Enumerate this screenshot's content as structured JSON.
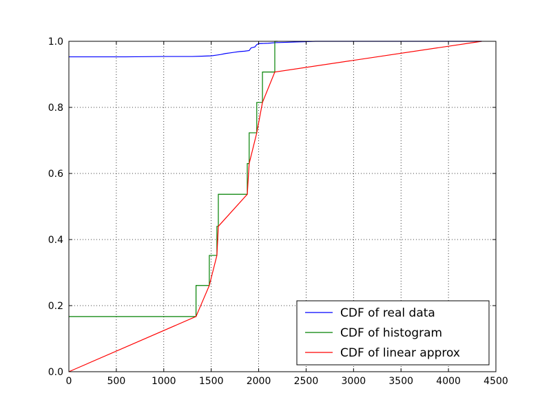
{
  "chart_data": {
    "type": "line",
    "title": "",
    "xlabel": "",
    "ylabel": "",
    "xlim": [
      0,
      4500
    ],
    "ylim": [
      0,
      1.0
    ],
    "xticks": [
      0,
      500,
      1000,
      1500,
      2000,
      2500,
      3000,
      3500,
      4000,
      4500
    ],
    "yticks": [
      0.0,
      0.2,
      0.4,
      0.6,
      0.8,
      1.0
    ],
    "xtick_labels": [
      "0",
      "500",
      "1000",
      "1500",
      "2000",
      "2500",
      "3000",
      "3500",
      "4000",
      "4500"
    ],
    "ytick_labels": [
      "0.0",
      "0.2",
      "0.4",
      "0.6",
      "0.8",
      "1.0"
    ],
    "grid": true,
    "legend_position": "bottom-right",
    "series": [
      {
        "name": "CDF of real data",
        "color": "#0000ff",
        "x": [
          0,
          600,
          1000,
          1300,
          1400,
          1500,
          1550,
          1600,
          1650,
          1700,
          1750,
          1800,
          1850,
          1900,
          1920,
          1960,
          1980,
          2000,
          2100,
          2180,
          2300,
          2400,
          2500,
          2600,
          4350
        ],
        "y": [
          0.953,
          0.953,
          0.954,
          0.954,
          0.955,
          0.956,
          0.958,
          0.96,
          0.963,
          0.965,
          0.967,
          0.969,
          0.97,
          0.972,
          0.98,
          0.983,
          0.99,
          0.993,
          0.994,
          0.996,
          0.997,
          0.998,
          0.999,
          1.0,
          1.0
        ]
      },
      {
        "name": "CDF of histogram",
        "color": "#008000",
        "x": [
          0,
          1340,
          1340,
          1480,
          1480,
          1560,
          1560,
          1575,
          1575,
          1880,
          1880,
          1900,
          1900,
          1980,
          1980,
          2040,
          2040,
          2170,
          2170,
          2200
        ],
        "y": [
          0.167,
          0.167,
          0.261,
          0.261,
          0.352,
          0.352,
          0.44,
          0.44,
          0.537,
          0.537,
          0.63,
          0.63,
          0.723,
          0.723,
          0.815,
          0.815,
          0.907,
          0.907,
          1.0,
          1.0
        ]
      },
      {
        "name": "CDF of linear approx",
        "color": "#ff0000",
        "x": [
          0,
          1340,
          1480,
          1560,
          1575,
          1880,
          1900,
          1980,
          2040,
          2170,
          4350
        ],
        "y": [
          0.0,
          0.167,
          0.261,
          0.352,
          0.44,
          0.537,
          0.63,
          0.723,
          0.815,
          0.907,
          1.0
        ]
      }
    ]
  }
}
